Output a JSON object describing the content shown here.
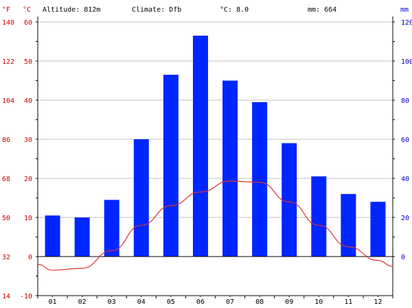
{
  "header": {
    "unit_f": "°F",
    "unit_c": "°C",
    "altitude": "Altitude: 812m",
    "climate": "Climate: Dfb",
    "temp": "°C: 8.0",
    "precip": "mm: 664",
    "unit_mm": "mm"
  },
  "colors": {
    "temp_axis": "#cc0000",
    "precip_axis": "#0000cc",
    "bar": "#0026ff",
    "line": "#e03030",
    "grid": "#c0c0c0",
    "text": "#000000"
  },
  "chart_data": {
    "type": "bar",
    "categories": [
      "01",
      "02",
      "03",
      "04",
      "05",
      "06",
      "07",
      "08",
      "09",
      "10",
      "11",
      "12"
    ],
    "series": [
      {
        "type": "bar",
        "axis": "right",
        "values": [
          21,
          20,
          29,
          60,
          93,
          113,
          90,
          79,
          58,
          41,
          32,
          28
        ]
      },
      {
        "type": "line",
        "axis": "left",
        "values": [
          -3.5,
          -3.0,
          1.5,
          8.0,
          13.0,
          16.5,
          19.3,
          19.0,
          14.0,
          8.0,
          2.5,
          -1.0
        ],
        "start_value": -2.0,
        "end_value": -2.5
      }
    ],
    "y_left": {
      "label": "°C",
      "ylim": [
        -10,
        60
      ],
      "ticks": [
        60,
        50,
        40,
        30,
        20,
        10,
        0,
        -10
      ]
    },
    "y_left_f": {
      "label": "°F",
      "ticks": [
        140,
        122,
        104,
        86,
        68,
        50,
        32,
        14
      ]
    },
    "y_right": {
      "label": "mm",
      "ylim": [
        -20,
        120
      ],
      "ticks": [
        120,
        100,
        80,
        60,
        40,
        20,
        0
      ]
    },
    "grid": true
  }
}
